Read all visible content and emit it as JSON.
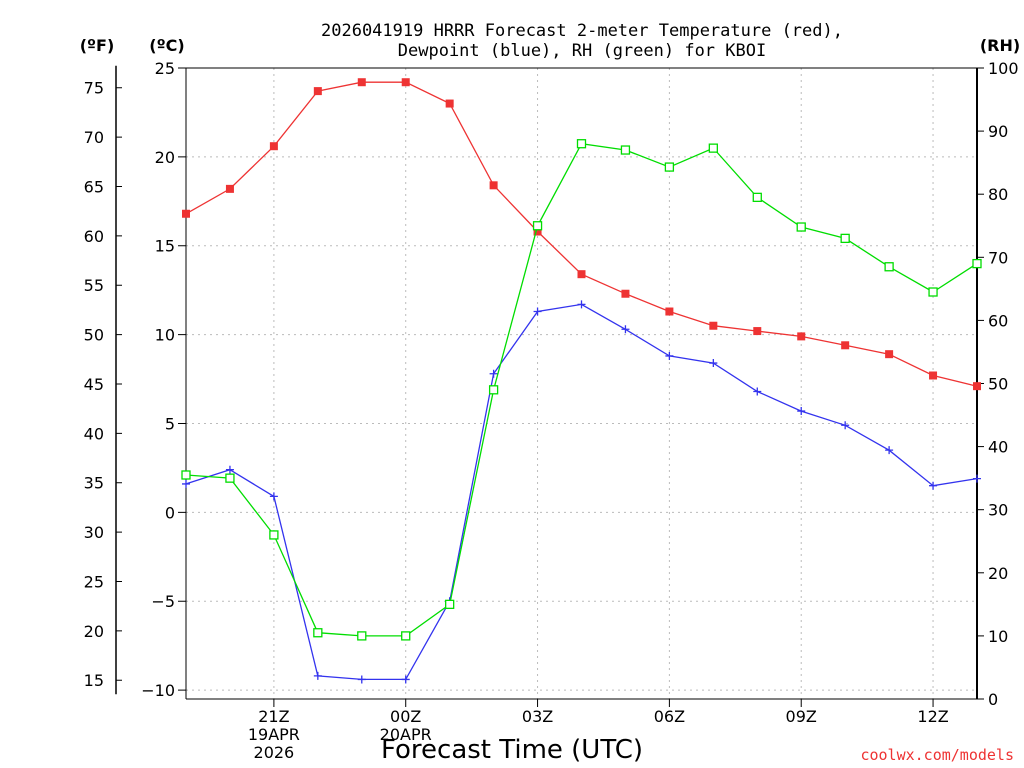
{
  "chart_data": {
    "type": "line",
    "title_lines": [
      "2026041919 HRRR Forecast 2-meter Temperature (red),",
      "Dewpoint (blue), RH (green) for KBOI"
    ],
    "xlabel": "Forecast Time (UTC)",
    "x_hours": [
      19,
      20,
      21,
      22,
      23,
      24,
      25,
      26,
      27,
      28,
      29,
      30,
      31,
      32,
      33,
      34,
      35,
      36,
      37
    ],
    "x_ticks": [
      {
        "hour": 21,
        "lines": [
          "21Z",
          "19APR",
          "2026"
        ]
      },
      {
        "hour": 24,
        "lines": [
          "00Z",
          "20APR"
        ]
      },
      {
        "hour": 27,
        "lines": [
          "03Z"
        ]
      },
      {
        "hour": 30,
        "lines": [
          "06Z"
        ]
      },
      {
        "hour": 33,
        "lines": [
          "09Z"
        ]
      },
      {
        "hour": 36,
        "lines": [
          "12Z"
        ]
      }
    ],
    "y_left_c": {
      "label": "(ºC)",
      "range": [
        -10.5,
        25
      ],
      "ticks": [
        -10,
        -5,
        0,
        5,
        10,
        15,
        20,
        25
      ]
    },
    "y_left_f": {
      "label": "(ºF)",
      "ticks": [
        15,
        20,
        25,
        30,
        35,
        40,
        45,
        50,
        55,
        60,
        65,
        70,
        75
      ]
    },
    "y_right_rh": {
      "label": "(RH)",
      "range": [
        0,
        100
      ],
      "ticks": [
        0,
        10,
        20,
        30,
        40,
        50,
        60,
        70,
        80,
        90,
        100
      ]
    },
    "series": [
      {
        "name": "2-meter Temperature",
        "axis": "C",
        "color": "#ee3333",
        "marker": "filled-square",
        "values": [
          16.8,
          18.2,
          20.6,
          23.7,
          24.2,
          24.2,
          23.0,
          18.4,
          15.8,
          13.4,
          12.3,
          11.3,
          10.5,
          10.2,
          9.9,
          9.4,
          8.9,
          7.7,
          7.1
        ]
      },
      {
        "name": "Dewpoint",
        "axis": "C",
        "color": "#3333ee",
        "marker": "plus",
        "values": [
          1.6,
          2.4,
          0.9,
          -9.2,
          -9.4,
          -9.4,
          -5.0,
          7.8,
          11.3,
          11.7,
          10.3,
          8.8,
          8.4,
          6.8,
          5.7,
          4.9,
          3.5,
          1.5,
          1.9
        ]
      },
      {
        "name": "RH",
        "axis": "RH",
        "color": "#00dd00",
        "marker": "open-square",
        "values": [
          35.5,
          35.0,
          26.0,
          10.5,
          10.0,
          10.0,
          15.0,
          49.0,
          75.0,
          88.0,
          87.0,
          84.3,
          87.3,
          79.5,
          74.8,
          73.0,
          68.5,
          64.5,
          69.0
        ]
      }
    ]
  },
  "credit": "coolwx.com/models"
}
